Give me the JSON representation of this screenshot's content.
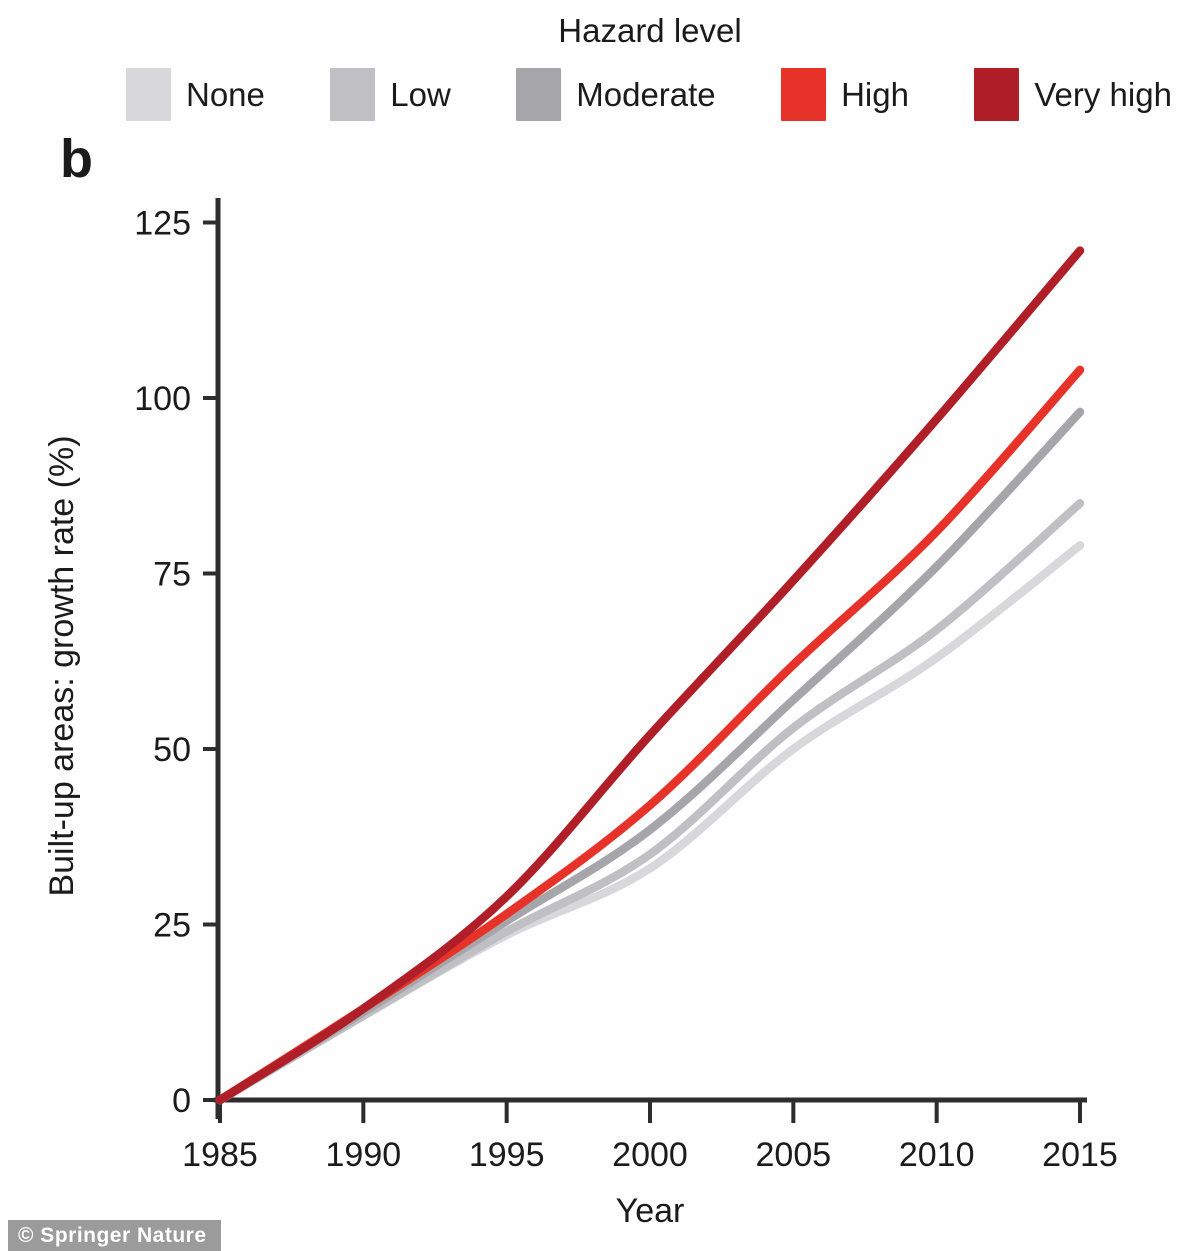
{
  "panel_label": "b",
  "legend": {
    "title": "Hazard level",
    "items": [
      {
        "label": "None",
        "color": "#d8d8da"
      },
      {
        "label": "Low",
        "color": "#c0c0c4"
      },
      {
        "label": "Moderate",
        "color": "#a6a6aa"
      },
      {
        "label": "High",
        "color": "#e63229"
      },
      {
        "label": "Very high",
        "color": "#b01f28"
      }
    ]
  },
  "watermark": "© Springer Nature",
  "chart_data": {
    "type": "line",
    "title": "Hazard level",
    "xlabel": "Year",
    "ylabel": "Built-up areas: growth rate (%)",
    "x": [
      1985,
      1990,
      1995,
      2000,
      2005,
      2010,
      2015
    ],
    "x_ticks": [
      1985,
      1990,
      1995,
      2000,
      2005,
      2010,
      2015
    ],
    "y_ticks": [
      0,
      25,
      50,
      75,
      100,
      125
    ],
    "xlim": [
      1985,
      2015
    ],
    "ylim": [
      0,
      125
    ],
    "grid": false,
    "legend_position": "top",
    "axis_color": "#2d2d2d",
    "series": [
      {
        "name": "None",
        "color": "#d8d8da",
        "values": [
          0,
          12,
          23.5,
          33,
          50,
          63,
          79
        ]
      },
      {
        "name": "Low",
        "color": "#c0c0c4",
        "values": [
          0,
          12,
          24,
          35,
          53,
          67,
          85
        ]
      },
      {
        "name": "Moderate",
        "color": "#a6a6aa",
        "values": [
          0,
          12.5,
          25.5,
          38.5,
          57,
          76,
          98
        ]
      },
      {
        "name": "High",
        "color": "#e63229",
        "values": [
          0,
          13,
          26.5,
          42,
          62,
          81,
          104
        ]
      },
      {
        "name": "Very high",
        "color": "#b01f28",
        "values": [
          0,
          13,
          29,
          52,
          74,
          97,
          121
        ]
      }
    ]
  }
}
